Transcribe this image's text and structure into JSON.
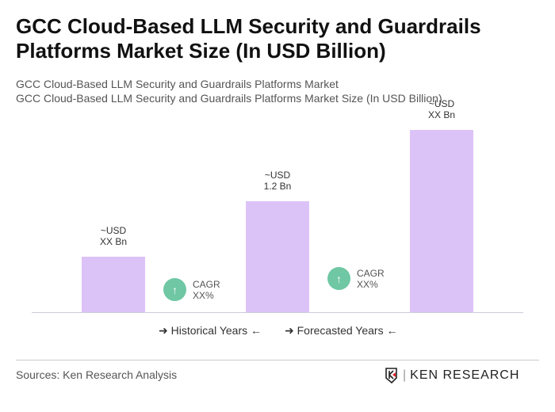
{
  "title": "GCC Cloud-Based LLM Security and Guardrails Platforms Market Size (In USD Billion)",
  "subtitle1": "GCC Cloud-Based LLM Security and Guardrails Platforms Market",
  "subtitle2": "GCC Cloud-Based LLM Security and Guardrails Platforms Market Size (In USD Billion)",
  "chart_data": {
    "type": "bar",
    "values": [
      0.6,
      1.2,
      1.97
    ],
    "data_labels": [
      [
        "~USD",
        "XX Bn"
      ],
      [
        "~USD",
        "1.2 Bn"
      ],
      [
        "~USD",
        "XX Bn"
      ]
    ],
    "bar_color": "#dcc3f7",
    "cagr": [
      {
        "label": "CAGR",
        "value": "XX%"
      },
      {
        "label": "CAGR",
        "value": "XX%"
      }
    ],
    "cagr_color": "#6fc7a4",
    "legend": [
      "Historical Years",
      "Forecasted Years"
    ],
    "legend_placement": "bottom",
    "grid": false
  },
  "source": "Sources: Ken Research Analysis",
  "logo": "KEN RESEARCH"
}
